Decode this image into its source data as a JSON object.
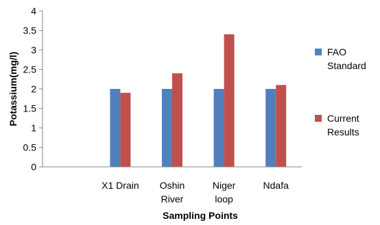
{
  "chart_data": {
    "type": "bar",
    "title": "",
    "xlabel": "Sampling Points",
    "ylabel": "Potassium(mg/l)",
    "ylim": [
      0,
      4
    ],
    "yticks": [
      "0",
      "0.5",
      "1",
      "1.5",
      "2",
      "2.5",
      "3",
      "3.5",
      "4"
    ],
    "y_tick_step": 0.5,
    "grid": false,
    "legend_position": "right",
    "categories": [
      {
        "id": "empty",
        "lines": []
      },
      {
        "id": "x1-drain",
        "lines": [
          "X1 Drain"
        ]
      },
      {
        "id": "oshin-river",
        "lines": [
          "Oshin",
          "River"
        ]
      },
      {
        "id": "niger-loop",
        "lines": [
          "Niger",
          "loop"
        ]
      },
      {
        "id": "ndafa",
        "lines": [
          "Ndafa"
        ]
      }
    ],
    "series": [
      {
        "id": "fao-standard",
        "name": "FAO Standard",
        "legend_lines": [
          "FAO",
          "Standard"
        ],
        "color": "#4f81bd",
        "values": [
          null,
          2.0,
          2.0,
          2.0,
          2.0
        ]
      },
      {
        "id": "current-results",
        "name": "Current Results",
        "legend_lines": [
          "Current",
          "Results"
        ],
        "color": "#c0504d",
        "values": [
          null,
          1.9,
          2.4,
          3.4,
          2.1
        ]
      }
    ]
  }
}
